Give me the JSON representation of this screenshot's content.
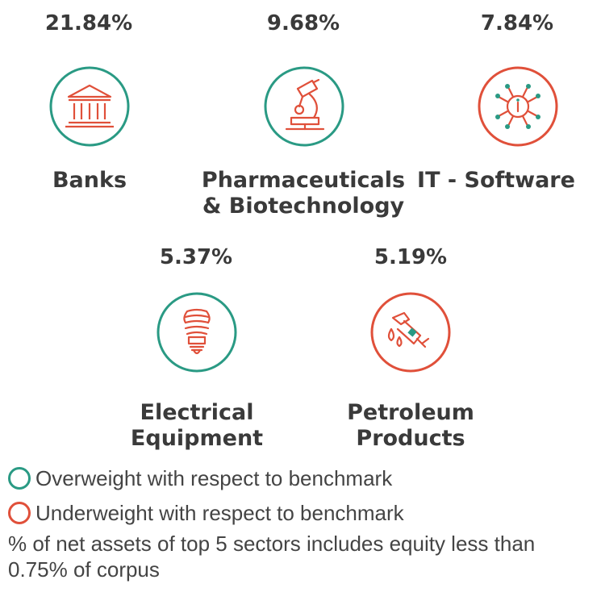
{
  "colors": {
    "overweight": "#2a9a84",
    "underweight": "#e0503a",
    "text": "#3a3a3a"
  },
  "sectors": [
    {
      "percent": "21.84%",
      "label_lines": [
        "Banks"
      ],
      "icon": "bank-icon",
      "weight": "overweight"
    },
    {
      "percent": "9.68%",
      "label_lines": [
        "Pharmaceuticals",
        "& Biotechnology"
      ],
      "icon": "microscope-icon",
      "weight": "overweight"
    },
    {
      "percent": "7.84%",
      "label_lines": [
        "IT - Software"
      ],
      "icon": "circuit-info-icon",
      "weight": "underweight"
    },
    {
      "percent": "5.37%",
      "label_lines": [
        "Electrical",
        "Equipment"
      ],
      "icon": "light-bulb-icon",
      "weight": "overweight"
    },
    {
      "percent": "5.19%",
      "label_lines": [
        "Petroleum",
        "Products"
      ],
      "icon": "fuel-nozzle-icon",
      "weight": "underweight"
    }
  ],
  "legend": {
    "overweight": "Overweight with respect to benchmark",
    "underweight": "Underweight with respect to benchmark"
  },
  "note": "% of net assets of top 5 sectors includes equity less than 0.75% of corpus"
}
